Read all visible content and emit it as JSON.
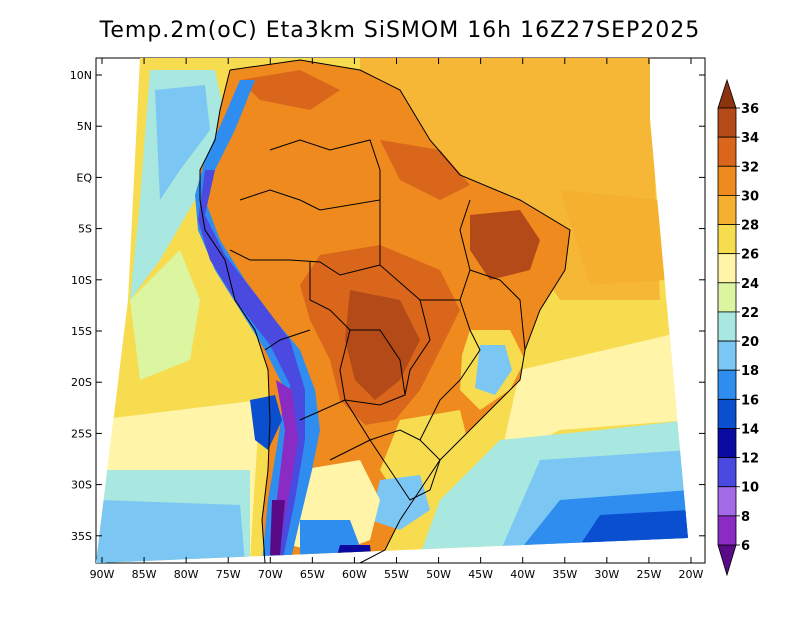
{
  "title": "Temp.2m(oC) Eta3km SiSMOM 16h 16Z27SEP2025",
  "map": {
    "lat_ticks": [
      "10N",
      "5N",
      "EQ",
      "5S",
      "10S",
      "15S",
      "20S",
      "25S",
      "30S",
      "35S"
    ],
    "lon_ticks": [
      "90W",
      "85W",
      "80W",
      "75W",
      "70W",
      "65W",
      "60W",
      "55W",
      "50W",
      "45W",
      "40W",
      "35W",
      "30W",
      "25W",
      "20W"
    ],
    "lat_range": [
      -38,
      11
    ],
    "lon_range": [
      -91,
      -20
    ]
  },
  "colorbar": {
    "labels": [
      "6",
      "8",
      "10",
      "12",
      "14",
      "16",
      "18",
      "20",
      "22",
      "24",
      "26",
      "28",
      "30",
      "32",
      "34",
      "36"
    ],
    "colors": [
      "#5a0a87",
      "#8a2bc4",
      "#a36be8",
      "#4a4ae0",
      "#0a0aa0",
      "#0a4fd0",
      "#2f8df0",
      "#7bc6f2",
      "#a8e8e0",
      "#dcf5a0",
      "#fff4a8",
      "#f7dc50",
      "#f5b030",
      "#ee8a1e",
      "#d9661a",
      "#b34a18",
      "#8c3310"
    ]
  }
}
